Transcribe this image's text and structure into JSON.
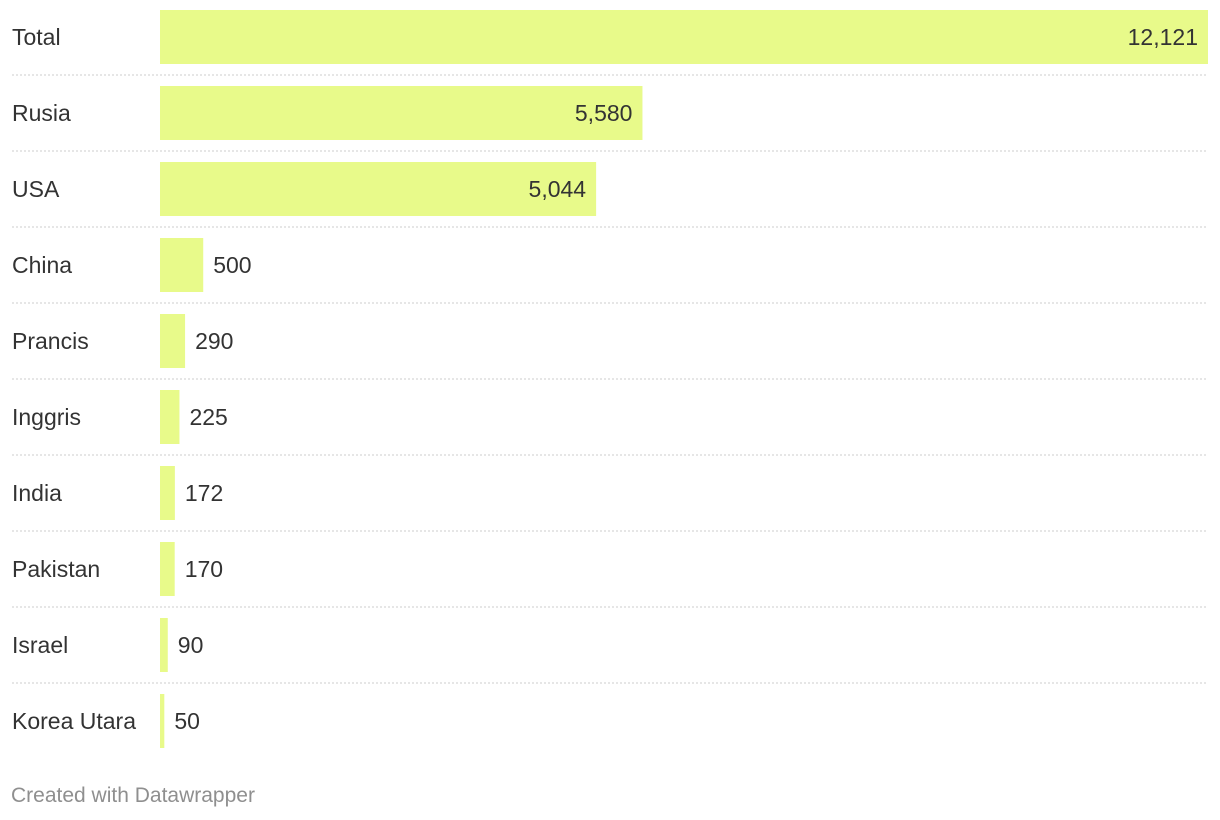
{
  "chart_data": {
    "type": "bar",
    "orientation": "horizontal",
    "categories": [
      "Total",
      "Rusia",
      "USA",
      "China",
      "Prancis",
      "Inggris",
      "India",
      "Pakistan",
      "Israel",
      "Korea Utara"
    ],
    "values": [
      12121,
      5580,
      5044,
      500,
      290,
      225,
      172,
      170,
      90,
      50
    ],
    "value_labels": [
      "12,121",
      "5,580",
      "5,044",
      "500",
      "290",
      "225",
      "172",
      "170",
      "90",
      "50"
    ],
    "title": "",
    "xlabel": "",
    "ylabel": "",
    "xlim": [
      0,
      12121
    ],
    "grid": false,
    "bar_color": "#e8fa8a",
    "separator_color": "#cccccc",
    "text_color": "#333333"
  },
  "footer": {
    "credit": "Created with Datawrapper"
  }
}
